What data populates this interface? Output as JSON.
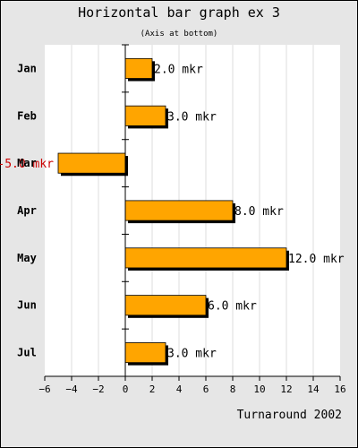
{
  "chart_data": {
    "type": "bar",
    "orientation": "horizontal",
    "title": "Horizontal bar graph ex 3",
    "subtitle": "(Axis at bottom)",
    "footer": "Turnaround 2002",
    "categories": [
      "Jan",
      "Feb",
      "Mar",
      "Apr",
      "May",
      "Jun",
      "Jul"
    ],
    "values": [
      2,
      3,
      -5,
      8,
      12,
      6,
      3
    ],
    "value_labels": [
      "2.0 mkr",
      "3.0 mkr",
      "-5.0 mkr",
      "8.0 mkr",
      "12.0 mkr",
      "6.0 mkr",
      "3.0 mkr"
    ],
    "xlim": [
      -6,
      16
    ],
    "xticks": [
      -6,
      -4,
      -2,
      0,
      2,
      4,
      6,
      8,
      10,
      12,
      14,
      16
    ],
    "x_axis_position": "bottom",
    "grid": "vertical",
    "colors": {
      "bar": "#ffa500",
      "shadow": "#000000",
      "negative_label": "#cc0000",
      "plot_bg": "#ffffff",
      "frame_bg": "#e6e6e6",
      "grid": "#dddddd"
    }
  }
}
